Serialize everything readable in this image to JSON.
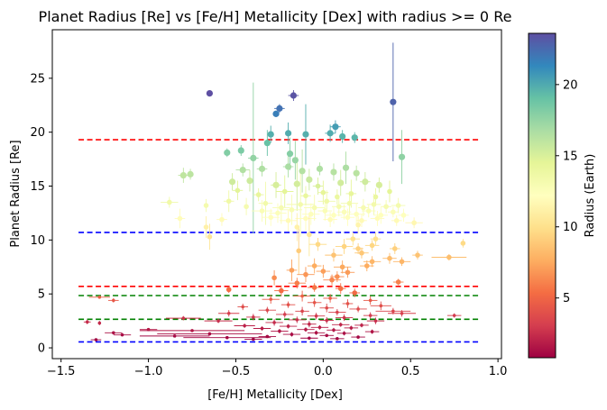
{
  "chart_data": {
    "type": "scatter",
    "title": "Planet Radius [Re] vs [Fe/H] Metallicity [Dex] with radius >= 0 Re",
    "xlabel": "[Fe/H] Metallicity [Dex]",
    "ylabel": "Planet Radius [Re]",
    "xlim": [
      -1.55,
      1.02
    ],
    "ylim": [
      -1.0,
      29.5
    ],
    "xticks": [
      -1.5,
      -1.0,
      -0.5,
      0.0,
      0.5,
      1.0
    ],
    "xtick_labels": [
      "−1.5",
      "−1.0",
      "−0.5",
      "0.0",
      "0.5",
      "1.0"
    ],
    "yticks": [
      0,
      5,
      10,
      15,
      20,
      25
    ],
    "ytick_labels": [
      "0",
      "5",
      "10",
      "15",
      "20",
      "25"
    ],
    "grid": false,
    "colorbar": {
      "label": "Radius (Earth)",
      "colormap": "Spectral",
      "range": [
        0.8,
        23.6
      ],
      "ticks": [
        5,
        10,
        15,
        20
      ],
      "tick_labels": [
        "5",
        "10",
        "15",
        "20"
      ]
    },
    "hlines": [
      {
        "y": 19.3,
        "color": "#ff0000",
        "style": "dashed",
        "xmin": -1.4,
        "xmax": 0.89
      },
      {
        "y": 10.7,
        "color": "#0000ff",
        "style": "dashed",
        "xmin": -1.4,
        "xmax": 0.89
      },
      {
        "y": 5.7,
        "color": "#ff0000",
        "style": "dashed",
        "xmin": -1.4,
        "xmax": 0.89
      },
      {
        "y": 4.85,
        "color": "#008000",
        "style": "dashed",
        "xmin": -1.4,
        "xmax": 0.89
      },
      {
        "y": 2.65,
        "color": "#008000",
        "style": "dashed",
        "xmin": -1.4,
        "xmax": 0.89
      },
      {
        "y": 0.55,
        "color": "#0000ff",
        "style": "dashed",
        "xmin": -1.4,
        "xmax": 0.89
      }
    ],
    "points": [
      {
        "x": -0.65,
        "y": 23.6,
        "xerr": 0.0,
        "yerr": 0.0
      },
      {
        "x": -0.17,
        "y": 23.4,
        "xerr": 0.03,
        "yerr": 0.5
      },
      {
        "x": 0.4,
        "y": 22.8,
        "xerr": 0.0,
        "yerr": 5.5
      },
      {
        "x": -0.25,
        "y": 22.2,
        "xerr": 0.03,
        "yerr": 0.4
      },
      {
        "x": -0.27,
        "y": 21.7,
        "xerr": 0.0,
        "yerr": 0.3
      },
      {
        "x": 0.07,
        "y": 20.5,
        "xerr": 0.03,
        "yerr": 0.6
      },
      {
        "x": 0.04,
        "y": 19.9,
        "xerr": 0.03,
        "yerr": 0.8
      },
      {
        "x": -0.3,
        "y": 19.8,
        "xerr": 0.0,
        "yerr": 0.8
      },
      {
        "x": -0.1,
        "y": 19.8,
        "xerr": 0.0,
        "yerr": 2.8
      },
      {
        "x": -0.2,
        "y": 19.9,
        "xerr": 0.0,
        "yerr": 1.0
      },
      {
        "x": 0.11,
        "y": 19.6,
        "xerr": 0.0,
        "yerr": 0.6
      },
      {
        "x": 0.18,
        "y": 19.5,
        "xerr": 0.0,
        "yerr": 0.5
      },
      {
        "x": -0.32,
        "y": 19.0,
        "xerr": 0.0,
        "yerr": 1.2
      },
      {
        "x": -0.55,
        "y": 18.1,
        "xerr": 0.0,
        "yerr": 0.4
      },
      {
        "x": -0.47,
        "y": 18.3,
        "xerr": 0.0,
        "yerr": 0.5
      },
      {
        "x": -0.4,
        "y": 17.6,
        "xerr": 0.03,
        "yerr": 7.0
      },
      {
        "x": -0.19,
        "y": 18.0,
        "xerr": 0.0,
        "yerr": 1.5
      },
      {
        "x": -0.16,
        "y": 17.4,
        "xerr": 0.0,
        "yerr": 1.8
      },
      {
        "x": 0.45,
        "y": 17.7,
        "xerr": 0.0,
        "yerr": 2.5
      },
      {
        "x": -0.8,
        "y": 16.0,
        "xerr": 0.03,
        "yerr": 0.7
      },
      {
        "x": -0.76,
        "y": 16.1,
        "xerr": 0.0,
        "yerr": 0.5
      },
      {
        "x": -0.46,
        "y": 16.5,
        "xerr": 0.04,
        "yerr": 0.6
      },
      {
        "x": -0.35,
        "y": 16.6,
        "xerr": 0.03,
        "yerr": 0.7
      },
      {
        "x": -0.2,
        "y": 16.8,
        "xerr": 0.03,
        "yerr": 1.0
      },
      {
        "x": -0.12,
        "y": 16.4,
        "xerr": 0.0,
        "yerr": 2.0
      },
      {
        "x": -0.02,
        "y": 16.6,
        "xerr": 0.0,
        "yerr": 0.6
      },
      {
        "x": 0.06,
        "y": 16.3,
        "xerr": 0.0,
        "yerr": 0.8
      },
      {
        "x": 0.13,
        "y": 16.7,
        "xerr": 0.0,
        "yerr": 1.5
      },
      {
        "x": 0.19,
        "y": 16.2,
        "xerr": 0.0,
        "yerr": 0.7
      },
      {
        "x": -0.52,
        "y": 15.4,
        "xerr": 0.0,
        "yerr": 0.8
      },
      {
        "x": -0.42,
        "y": 15.5,
        "xerr": 0.0,
        "yerr": 1.0
      },
      {
        "x": -0.27,
        "y": 15.1,
        "xerr": 0.03,
        "yerr": 1.2
      },
      {
        "x": -0.15,
        "y": 15.2,
        "xerr": 0.0,
        "yerr": 2.5
      },
      {
        "x": -0.08,
        "y": 15.6,
        "xerr": 0.0,
        "yerr": 1.0
      },
      {
        "x": -0.03,
        "y": 15.0,
        "xerr": 0.03,
        "yerr": 0.8
      },
      {
        "x": 0.1,
        "y": 15.3,
        "xerr": 0.0,
        "yerr": 1.2
      },
      {
        "x": 0.24,
        "y": 15.4,
        "xerr": 0.03,
        "yerr": 0.9
      },
      {
        "x": 0.32,
        "y": 15.1,
        "xerr": 0.0,
        "yerr": 0.7
      },
      {
        "x": -0.49,
        "y": 14.6,
        "xerr": 0.03,
        "yerr": 0.9
      },
      {
        "x": -0.37,
        "y": 14.2,
        "xerr": 0.03,
        "yerr": 0.6
      },
      {
        "x": -0.22,
        "y": 14.5,
        "xerr": 0.05,
        "yerr": 1.5
      },
      {
        "x": -0.1,
        "y": 14.1,
        "xerr": 0.03,
        "yerr": 0.9
      },
      {
        "x": 0.0,
        "y": 14.4,
        "xerr": 0.03,
        "yerr": 1.1
      },
      {
        "x": 0.08,
        "y": 14.0,
        "xerr": 0.0,
        "yerr": 0.7
      },
      {
        "x": 0.16,
        "y": 14.3,
        "xerr": 0.03,
        "yerr": 1.3
      },
      {
        "x": 0.3,
        "y": 14.0,
        "xerr": 0.0,
        "yerr": 0.8
      },
      {
        "x": 0.38,
        "y": 14.5,
        "xerr": 0.0,
        "yerr": 1.0
      },
      {
        "x": -0.88,
        "y": 13.5,
        "xerr": 0.05,
        "yerr": 0.5
      },
      {
        "x": -0.67,
        "y": 13.2,
        "xerr": 0.0,
        "yerr": 0.6
      },
      {
        "x": -0.54,
        "y": 13.6,
        "xerr": 0.03,
        "yerr": 1.0
      },
      {
        "x": -0.44,
        "y": 13.1,
        "xerr": 0.0,
        "yerr": 0.8
      },
      {
        "x": -0.33,
        "y": 13.4,
        "xerr": 0.04,
        "yerr": 2.0
      },
      {
        "x": -0.24,
        "y": 13.0,
        "xerr": 0.05,
        "yerr": 1.5
      },
      {
        "x": -0.13,
        "y": 13.3,
        "xerr": 0.08,
        "yerr": 3.0
      },
      {
        "x": -0.05,
        "y": 13.0,
        "xerr": 0.06,
        "yerr": 1.2
      },
      {
        "x": 0.02,
        "y": 13.6,
        "xerr": 0.05,
        "yerr": 1.0
      },
      {
        "x": 0.09,
        "y": 13.1,
        "xerr": 0.04,
        "yerr": 0.9
      },
      {
        "x": 0.15,
        "y": 13.4,
        "xerr": 0.05,
        "yerr": 1.1
      },
      {
        "x": 0.23,
        "y": 13.0,
        "xerr": 0.03,
        "yerr": 0.8
      },
      {
        "x": 0.29,
        "y": 13.3,
        "xerr": 0.04,
        "yerr": 1.0
      },
      {
        "x": 0.36,
        "y": 13.1,
        "xerr": 0.03,
        "yerr": 0.6
      },
      {
        "x": 0.43,
        "y": 13.2,
        "xerr": 0.04,
        "yerr": 0.7
      },
      {
        "x": -0.35,
        "y": 12.7,
        "xerr": 0.06,
        "yerr": 1.0
      },
      {
        "x": -0.26,
        "y": 12.5,
        "xerr": 0.05,
        "yerr": 0.9
      },
      {
        "x": -0.18,
        "y": 12.8,
        "xerr": 0.06,
        "yerr": 1.4
      },
      {
        "x": -0.07,
        "y": 12.4,
        "xerr": 0.05,
        "yerr": 1.0
      },
      {
        "x": 0.01,
        "y": 12.7,
        "xerr": 0.04,
        "yerr": 0.9
      },
      {
        "x": 0.06,
        "y": 12.3,
        "xerr": 0.05,
        "yerr": 0.8
      },
      {
        "x": 0.12,
        "y": 12.6,
        "xerr": 0.04,
        "yerr": 0.7
      },
      {
        "x": 0.19,
        "y": 12.4,
        "xerr": 0.05,
        "yerr": 1.0
      },
      {
        "x": 0.26,
        "y": 12.7,
        "xerr": 0.04,
        "yerr": 0.6
      },
      {
        "x": 0.33,
        "y": 12.3,
        "xerr": 0.04,
        "yerr": 0.8
      },
      {
        "x": 0.4,
        "y": 12.6,
        "xerr": 0.03,
        "yerr": 0.5
      },
      {
        "x": 0.46,
        "y": 12.3,
        "xerr": 0.03,
        "yerr": 0.6
      },
      {
        "x": -0.82,
        "y": 12.0,
        "xerr": 0.03,
        "yerr": 0.9
      },
      {
        "x": -0.58,
        "y": 11.9,
        "xerr": 0.03,
        "yerr": 0.6
      },
      {
        "x": -0.3,
        "y": 12.1,
        "xerr": 0.05,
        "yerr": 0.8
      },
      {
        "x": -0.2,
        "y": 11.8,
        "xerr": 0.05,
        "yerr": 1.0
      },
      {
        "x": -0.1,
        "y": 12.0,
        "xerr": 0.06,
        "yerr": 1.1
      },
      {
        "x": 0.04,
        "y": 11.9,
        "xerr": 0.04,
        "yerr": 0.7
      },
      {
        "x": 0.14,
        "y": 12.1,
        "xerr": 0.04,
        "yerr": 0.8
      },
      {
        "x": 0.22,
        "y": 11.8,
        "xerr": 0.03,
        "yerr": 0.6
      },
      {
        "x": 0.31,
        "y": 12.0,
        "xerr": 0.04,
        "yerr": 0.7
      },
      {
        "x": 0.42,
        "y": 11.8,
        "xerr": 0.03,
        "yerr": 0.5
      },
      {
        "x": 0.52,
        "y": 11.6,
        "xerr": 0.05,
        "yerr": 0.5
      },
      {
        "x": -0.67,
        "y": 11.2,
        "xerr": 0.0,
        "yerr": 1.0
      },
      {
        "x": -0.15,
        "y": 11.2,
        "xerr": 0.0,
        "yerr": 1.3
      },
      {
        "x": 0.2,
        "y": 11.4,
        "xerr": 0.0,
        "yerr": 0.8
      },
      {
        "x": -0.65,
        "y": 10.3,
        "xerr": 0.0,
        "yerr": 1.2
      },
      {
        "x": -0.08,
        "y": 10.5,
        "xerr": 0.0,
        "yerr": 2.0
      },
      {
        "x": 0.17,
        "y": 10.1,
        "xerr": 0.04,
        "yerr": 0.6
      },
      {
        "x": 0.3,
        "y": 10.1,
        "xerr": 0.03,
        "yerr": 0.6
      },
      {
        "x": 0.8,
        "y": 9.7,
        "xerr": 0.0,
        "yerr": 0.4
      },
      {
        "x": -0.03,
        "y": 9.6,
        "xerr": 0.05,
        "yerr": 0.6
      },
      {
        "x": 0.28,
        "y": 9.5,
        "xerr": 0.04,
        "yerr": 0.5
      },
      {
        "x": 0.12,
        "y": 9.4,
        "xerr": 0.05,
        "yerr": 0.7
      },
      {
        "x": 0.41,
        "y": 9.2,
        "xerr": 0.03,
        "yerr": 0.5
      },
      {
        "x": 0.2,
        "y": 9.2,
        "xerr": 0.03,
        "yerr": 0.5
      },
      {
        "x": -0.14,
        "y": 9.0,
        "xerr": 0.0,
        "yerr": 2.2
      },
      {
        "x": 0.06,
        "y": 8.6,
        "xerr": 0.05,
        "yerr": 0.6
      },
      {
        "x": 0.22,
        "y": 8.8,
        "xerr": 0.04,
        "yerr": 0.5
      },
      {
        "x": 0.54,
        "y": 8.6,
        "xerr": 0.03,
        "yerr": 0.4
      },
      {
        "x": 0.72,
        "y": 8.4,
        "xerr": 0.1,
        "yerr": 0.3
      },
      {
        "x": 0.38,
        "y": 8.3,
        "xerr": 0.04,
        "yerr": 0.5
      },
      {
        "x": 0.28,
        "y": 8.0,
        "xerr": 0.05,
        "yerr": 0.5
      },
      {
        "x": 0.45,
        "y": 8.0,
        "xerr": 0.05,
        "yerr": 0.4
      },
      {
        "x": -0.05,
        "y": 7.6,
        "xerr": 0.04,
        "yerr": 0.7
      },
      {
        "x": 0.11,
        "y": 7.5,
        "xerr": 0.05,
        "yerr": 0.6
      },
      {
        "x": 0.25,
        "y": 7.6,
        "xerr": 0.04,
        "yerr": 0.5
      },
      {
        "x": -0.18,
        "y": 7.2,
        "xerr": 0.03,
        "yerr": 1.0
      },
      {
        "x": 0.0,
        "y": 7.1,
        "xerr": 0.04,
        "yerr": 0.6
      },
      {
        "x": 0.14,
        "y": 7.0,
        "xerr": 0.04,
        "yerr": 0.5
      },
      {
        "x": -0.1,
        "y": 6.8,
        "xerr": 0.05,
        "yerr": 0.7
      },
      {
        "x": 0.08,
        "y": 6.6,
        "xerr": 0.04,
        "yerr": 0.5
      },
      {
        "x": -0.28,
        "y": 6.5,
        "xerr": 0.0,
        "yerr": 0.7
      },
      {
        "x": 0.05,
        "y": 6.3,
        "xerr": 0.05,
        "yerr": 0.5
      },
      {
        "x": 0.43,
        "y": 6.1,
        "xerr": 0.03,
        "yerr": 0.3
      },
      {
        "x": -0.15,
        "y": 6.0,
        "xerr": 0.05,
        "yerr": 0.5
      },
      {
        "x": -0.05,
        "y": 5.6,
        "xerr": 0.04,
        "yerr": 0.4
      },
      {
        "x": 0.1,
        "y": 5.5,
        "xerr": 0.03,
        "yerr": 0.5
      },
      {
        "x": -0.54,
        "y": 5.4,
        "xerr": 0.0,
        "yerr": 0.3
      },
      {
        "x": -0.24,
        "y": 5.3,
        "xerr": 0.04,
        "yerr": 0.5
      },
      {
        "x": 0.18,
        "y": 5.1,
        "xerr": 0.03,
        "yerr": 0.4
      },
      {
        "x": -0.12,
        "y": 4.8,
        "xerr": 0.05,
        "yerr": 0.5
      },
      {
        "x": 0.04,
        "y": 4.6,
        "xerr": 0.04,
        "yerr": 0.4
      },
      {
        "x": -0.3,
        "y": 4.5,
        "xerr": 0.05,
        "yerr": 0.4
      },
      {
        "x": 0.27,
        "y": 4.4,
        "xerr": 0.04,
        "yerr": 0.4
      },
      {
        "x": -1.2,
        "y": 4.4,
        "xerr": 0.03,
        "yerr": 0.2
      },
      {
        "x": -1.28,
        "y": 4.7,
        "xerr": 0.06,
        "yerr": 0.0
      },
      {
        "x": -0.05,
        "y": 4.2,
        "xerr": 0.04,
        "yerr": 0.4
      },
      {
        "x": 0.14,
        "y": 4.1,
        "xerr": 0.03,
        "yerr": 0.4
      },
      {
        "x": -0.2,
        "y": 4.0,
        "xerr": 0.04,
        "yerr": 0.3
      },
      {
        "x": 0.33,
        "y": 3.9,
        "xerr": 0.06,
        "yerr": 0.4
      },
      {
        "x": -0.46,
        "y": 3.8,
        "xerr": 0.03,
        "yerr": 0.3
      },
      {
        "x": 0.02,
        "y": 3.7,
        "xerr": 0.04,
        "yerr": 0.4
      },
      {
        "x": 0.2,
        "y": 3.6,
        "xerr": 0.05,
        "yerr": 0.3
      },
      {
        "x": -0.32,
        "y": 3.5,
        "xerr": 0.05,
        "yerr": 0.3
      },
      {
        "x": -0.12,
        "y": 3.4,
        "xerr": 0.04,
        "yerr": 0.4
      },
      {
        "x": 0.08,
        "y": 3.3,
        "xerr": 0.05,
        "yerr": 0.3
      },
      {
        "x": 0.4,
        "y": 3.4,
        "xerr": 0.1,
        "yerr": 0.3
      },
      {
        "x": 0.45,
        "y": 3.2,
        "xerr": 0.08,
        "yerr": 0.3
      },
      {
        "x": -0.54,
        "y": 3.2,
        "xerr": 0.06,
        "yerr": 0.3
      },
      {
        "x": -0.22,
        "y": 3.1,
        "xerr": 0.05,
        "yerr": 0.3
      },
      {
        "x": 0.27,
        "y": 3.0,
        "xerr": 0.04,
        "yerr": 0.3
      },
      {
        "x": -0.04,
        "y": 2.95,
        "xerr": 0.05,
        "yerr": 0.3
      },
      {
        "x": 0.75,
        "y": 3.0,
        "xerr": 0.04,
        "yerr": 0.2
      },
      {
        "x": -0.4,
        "y": 2.85,
        "xerr": 0.04,
        "yerr": 0.3
      },
      {
        "x": 0.12,
        "y": 2.8,
        "xerr": 0.05,
        "yerr": 0.3
      },
      {
        "x": -0.8,
        "y": 2.75,
        "xerr": 0.1,
        "yerr": 0.2
      },
      {
        "x": -0.15,
        "y": 2.6,
        "xerr": 0.05,
        "yerr": 0.3
      },
      {
        "x": 0.02,
        "y": 2.55,
        "xerr": 0.04,
        "yerr": 0.3
      },
      {
        "x": 0.3,
        "y": 2.5,
        "xerr": 0.05,
        "yerr": 0.3
      },
      {
        "x": -0.6,
        "y": 2.5,
        "xerr": 0.08,
        "yerr": 0.2
      },
      {
        "x": -1.35,
        "y": 2.4,
        "xerr": 0.02,
        "yerr": 0.2
      },
      {
        "x": -1.28,
        "y": 2.3,
        "xerr": 0.0,
        "yerr": 0.2
      },
      {
        "x": -0.28,
        "y": 2.35,
        "xerr": 0.05,
        "yerr": 0.3
      },
      {
        "x": -0.08,
        "y": 2.2,
        "xerr": 0.04,
        "yerr": 0.3
      },
      {
        "x": 0.1,
        "y": 2.15,
        "xerr": 0.05,
        "yerr": 0.2
      },
      {
        "x": 0.22,
        "y": 2.1,
        "xerr": 0.04,
        "yerr": 0.2
      },
      {
        "x": -0.45,
        "y": 2.05,
        "xerr": 0.06,
        "yerr": 0.2
      },
      {
        "x": -0.2,
        "y": 2.0,
        "xerr": 0.05,
        "yerr": 0.2
      },
      {
        "x": -0.02,
        "y": 1.9,
        "xerr": 0.05,
        "yerr": 0.2
      },
      {
        "x": 0.16,
        "y": 1.85,
        "xerr": 0.04,
        "yerr": 0.2
      },
      {
        "x": -0.35,
        "y": 1.8,
        "xerr": 0.05,
        "yerr": 0.2
      },
      {
        "x": -0.1,
        "y": 1.7,
        "xerr": 0.05,
        "yerr": 0.2
      },
      {
        "x": 0.06,
        "y": 1.65,
        "xerr": 0.04,
        "yerr": 0.2
      },
      {
        "x": -1.0,
        "y": 1.7,
        "xerr": 0.05,
        "yerr": 0.1
      },
      {
        "x": -0.75,
        "y": 1.6,
        "xerr": 0.3,
        "yerr": 0.1
      },
      {
        "x": -0.25,
        "y": 1.55,
        "xerr": 0.05,
        "yerr": 0.2
      },
      {
        "x": 0.28,
        "y": 1.5,
        "xerr": 0.04,
        "yerr": 0.2
      },
      {
        "x": -1.2,
        "y": 1.4,
        "xerr": 0.05,
        "yerr": 0.1
      },
      {
        "x": -0.04,
        "y": 1.4,
        "xerr": 0.05,
        "yerr": 0.2
      },
      {
        "x": 0.12,
        "y": 1.35,
        "xerr": 0.04,
        "yerr": 0.2
      },
      {
        "x": -0.65,
        "y": 1.3,
        "xerr": 0.3,
        "yerr": 0.1
      },
      {
        "x": -1.15,
        "y": 1.2,
        "xerr": 0.05,
        "yerr": 0.1
      },
      {
        "x": -0.18,
        "y": 1.25,
        "xerr": 0.05,
        "yerr": 0.2
      },
      {
        "x": 0.02,
        "y": 1.15,
        "xerr": 0.04,
        "yerr": 0.1
      },
      {
        "x": -0.85,
        "y": 1.1,
        "xerr": 0.2,
        "yerr": 0.1
      },
      {
        "x": -0.32,
        "y": 1.05,
        "xerr": 0.05,
        "yerr": 0.1
      },
      {
        "x": 0.2,
        "y": 1.0,
        "xerr": 0.04,
        "yerr": 0.1
      },
      {
        "x": -0.55,
        "y": 0.95,
        "xerr": 0.25,
        "yerr": 0.1
      },
      {
        "x": -0.08,
        "y": 0.9,
        "xerr": 0.05,
        "yerr": 0.1
      },
      {
        "x": -1.3,
        "y": 0.75,
        "xerr": 0.03,
        "yerr": 0.1
      },
      {
        "x": -0.4,
        "y": 0.8,
        "xerr": 0.05,
        "yerr": 0.1
      },
      {
        "x": 0.08,
        "y": 0.85,
        "xerr": 0.04,
        "yerr": 0.1
      }
    ]
  }
}
